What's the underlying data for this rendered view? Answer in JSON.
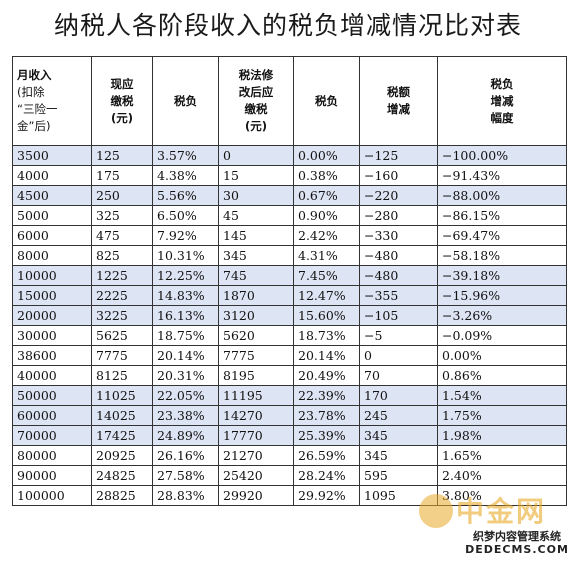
{
  "title": "纳税人各阶段收入的税负增减情况比对表",
  "columns": [
    {
      "lines": [
        "月收入",
        "(扣除",
        "“三险一",
        "金”后)"
      ]
    },
    {
      "lines": [
        "现应",
        "缴税",
        "(元)"
      ]
    },
    {
      "lines": [
        "税负"
      ]
    },
    {
      "lines": [
        "税法修",
        "改后应",
        "缴税",
        "(元)"
      ]
    },
    {
      "lines": [
        "税负"
      ]
    },
    {
      "lines": [
        "税额",
        "增减"
      ]
    },
    {
      "lines": [
        "税负",
        "增减",
        "幅度"
      ]
    }
  ],
  "rows": [
    {
      "shade": true,
      "cells": [
        "3500",
        "125",
        "3.57%",
        "0",
        "0.00%",
        "−125",
        "−100.00%"
      ]
    },
    {
      "shade": false,
      "cells": [
        "4000",
        "175",
        "4.38%",
        "15",
        "0.38%",
        "−160",
        "−91.43%"
      ]
    },
    {
      "shade": true,
      "cells": [
        "4500",
        "250",
        "5.56%",
        "30",
        "0.67%",
        "−220",
        "−88.00%"
      ]
    },
    {
      "shade": false,
      "cells": [
        "5000",
        "325",
        "6.50%",
        "45",
        "0.90%",
        "−280",
        "−86.15%"
      ]
    },
    {
      "shade": false,
      "cells": [
        "6000",
        "475",
        "7.92%",
        "145",
        "2.42%",
        "−330",
        "−69.47%"
      ]
    },
    {
      "shade": false,
      "cells": [
        "8000",
        "825",
        "10.31%",
        "345",
        "4.31%",
        "−480",
        "−58.18%"
      ]
    },
    {
      "shade": true,
      "cells": [
        "10000",
        "1225",
        "12.25%",
        "745",
        "7.45%",
        "−480",
        "−39.18%"
      ]
    },
    {
      "shade": true,
      "cells": [
        "15000",
        "2225",
        "14.83%",
        "1870",
        "12.47%",
        "−355",
        "−15.96%"
      ]
    },
    {
      "shade": true,
      "cells": [
        "20000",
        "3225",
        "16.13%",
        "3120",
        "15.60%",
        "−105",
        "−3.26%"
      ]
    },
    {
      "shade": false,
      "cells": [
        "30000",
        "5625",
        "18.75%",
        "5620",
        "18.73%",
        "−5",
        "−0.09%"
      ]
    },
    {
      "shade": false,
      "cells": [
        "38600",
        "7775",
        "20.14%",
        "7775",
        "20.14%",
        "0",
        "0.00%"
      ]
    },
    {
      "shade": false,
      "cells": [
        "40000",
        "8125",
        "20.31%",
        "8195",
        "20.49%",
        "70",
        "0.86%"
      ]
    },
    {
      "shade": true,
      "cells": [
        "50000",
        "11025",
        "22.05%",
        "11195",
        "22.39%",
        "170",
        "1.54%"
      ]
    },
    {
      "shade": true,
      "cells": [
        "60000",
        "14025",
        "23.38%",
        "14270",
        "23.78%",
        "245",
        "1.75%"
      ]
    },
    {
      "shade": true,
      "cells": [
        "70000",
        "17425",
        "24.89%",
        "17770",
        "25.39%",
        "345",
        "1.98%"
      ]
    },
    {
      "shade": false,
      "cells": [
        "80000",
        "20925",
        "26.16%",
        "21270",
        "26.59%",
        "345",
        "1.65%"
      ]
    },
    {
      "shade": false,
      "cells": [
        "90000",
        "24825",
        "27.58%",
        "25420",
        "28.24%",
        "595",
        "2.40%"
      ]
    },
    {
      "shade": false,
      "cells": [
        "100000",
        "28825",
        "28.83%",
        "29920",
        "29.92%",
        "1095",
        "3.80%"
      ]
    }
  ],
  "watermark": {
    "brand": "中金网",
    "badge_line1": "织梦内容管理系统",
    "badge_line2": "DEDECMS.COM"
  }
}
